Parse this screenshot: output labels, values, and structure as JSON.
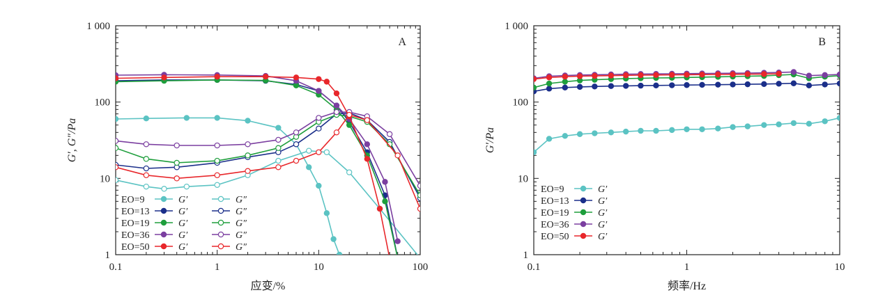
{
  "chart_data": [
    {
      "panel_label": "A",
      "type": "line",
      "xlabel": "应变/%",
      "ylabel": "G′, G″/Pa",
      "x_scale": "log",
      "y_scale": "log",
      "xlim": [
        0.1,
        100
      ],
      "ylim": [
        1,
        1000
      ],
      "x_ticks": [
        "0.1",
        "1",
        "10",
        "100"
      ],
      "y_ticks": [
        "1",
        "10",
        "100",
        "1 000"
      ],
      "legend_position": "bottom-left",
      "legend_columns": [
        {
          "entries": [
            {
              "label": "EO=9",
              "sym": "G′"
            },
            {
              "label": "EO=13",
              "sym": "G′"
            },
            {
              "label": "EO=19",
              "sym": "G′"
            },
            {
              "label": "EO=36",
              "sym": "G′"
            },
            {
              "label": "EO=50",
              "sym": "G′"
            }
          ]
        },
        {
          "entries": [
            {
              "label": "",
              "sym": "G″"
            },
            {
              "label": "",
              "sym": "G″"
            },
            {
              "label": "",
              "sym": "G″"
            },
            {
              "label": "",
              "sym": "G″"
            },
            {
              "label": "",
              "sym": "G″"
            }
          ]
        }
      ],
      "series": [
        {
          "name": "EO=9 G′",
          "color": "#5bc3c3",
          "marker": "filled",
          "x": [
            0.1,
            0.2,
            0.5,
            1,
            2,
            4,
            6,
            8,
            10,
            12,
            14,
            16
          ],
          "y": [
            60,
            61,
            62,
            62,
            57,
            46,
            28,
            14,
            8,
            3.5,
            1.6,
            1.0
          ]
        },
        {
          "name": "EO=9 G″",
          "color": "#5bc3c3",
          "marker": "open",
          "x": [
            0.1,
            0.2,
            0.3,
            0.5,
            1,
            2,
            4,
            8,
            12,
            20,
            40,
            100
          ],
          "y": [
            9.5,
            7.8,
            7.3,
            7.8,
            8.2,
            11,
            17,
            23,
            22,
            12,
            4,
            0.9
          ]
        },
        {
          "name": "EO=13 G′",
          "color": "#1b2f8a",
          "marker": "filled",
          "x": [
            0.1,
            0.3,
            1,
            3,
            6,
            10,
            15,
            20,
            30,
            45,
            60
          ],
          "y": [
            190,
            195,
            195,
            190,
            170,
            140,
            90,
            55,
            22,
            6,
            0.9
          ]
        },
        {
          "name": "EO=13 G″",
          "color": "#1b2f8a",
          "marker": "open",
          "x": [
            0.1,
            0.2,
            0.4,
            1,
            2,
            4,
            6,
            10,
            15,
            20,
            30,
            50,
            100
          ],
          "y": [
            15,
            13.5,
            14,
            16,
            19,
            22,
            28,
            45,
            70,
            72,
            58,
            30,
            5.5
          ]
        },
        {
          "name": "EO=19 G′",
          "color": "#1e9e3c",
          "marker": "filled",
          "x": [
            0.1,
            0.3,
            1,
            3,
            6,
            10,
            15,
            20,
            30,
            45,
            60
          ],
          "y": [
            185,
            190,
            195,
            192,
            165,
            125,
            80,
            50,
            20,
            5,
            0.9
          ]
        },
        {
          "name": "EO=19 G″",
          "color": "#1e9e3c",
          "marker": "open",
          "x": [
            0.1,
            0.2,
            0.4,
            1,
            2,
            4,
            6,
            10,
            15,
            20,
            30,
            50,
            100
          ],
          "y": [
            25,
            18,
            16,
            17,
            20,
            25,
            35,
            55,
            68,
            65,
            55,
            28,
            6
          ]
        },
        {
          "name": "EO=36 G′",
          "color": "#7b3fa0",
          "marker": "filled",
          "x": [
            0.1,
            0.3,
            1,
            3,
            6,
            10,
            15,
            20,
            30,
            45,
            60
          ],
          "y": [
            225,
            228,
            226,
            220,
            190,
            140,
            90,
            60,
            28,
            9,
            1.5
          ]
        },
        {
          "name": "EO=36 G″",
          "color": "#7b3fa0",
          "marker": "open",
          "x": [
            0.1,
            0.2,
            0.4,
            1,
            2,
            4,
            6,
            10,
            15,
            20,
            30,
            50,
            100
          ],
          "y": [
            31,
            28,
            27,
            27,
            28,
            32,
            40,
            62,
            74,
            74,
            65,
            38,
            8
          ]
        },
        {
          "name": "EO=50 G′",
          "color": "#e8272b",
          "marker": "filled",
          "x": [
            0.1,
            0.3,
            1,
            3,
            6,
            10,
            12,
            15,
            20,
            30,
            40,
            50
          ],
          "y": [
            205,
            210,
            215,
            215,
            210,
            200,
            185,
            130,
            65,
            18,
            4,
            0.9
          ]
        },
        {
          "name": "EO=50 G″",
          "color": "#e8272b",
          "marker": "open",
          "x": [
            0.1,
            0.2,
            0.4,
            1,
            2,
            4,
            6,
            10,
            15,
            20,
            30,
            60,
            100
          ],
          "y": [
            14,
            11,
            10,
            11,
            12.5,
            14,
            17,
            22,
            40,
            68,
            58,
            20,
            4
          ]
        }
      ]
    },
    {
      "panel_label": "B",
      "type": "line",
      "xlabel": "频率/Hz",
      "ylabel": "G′/Pa",
      "x_scale": "log",
      "y_scale": "log",
      "xlim": [
        0.1,
        10
      ],
      "ylim": [
        1,
        1000
      ],
      "x_ticks": [
        "0.1",
        "1",
        "10"
      ],
      "y_ticks": [
        "1",
        "10",
        "100",
        "1 000"
      ],
      "legend_position": "bottom-left",
      "legend_columns": [
        {
          "entries": [
            {
              "label": "EO=9",
              "sym": "G′"
            },
            {
              "label": "EO=13",
              "sym": "G′"
            },
            {
              "label": "EO=19",
              "sym": "G′"
            },
            {
              "label": "EO=36",
              "sym": "G′"
            },
            {
              "label": "EO=50",
              "sym": "G′"
            }
          ]
        }
      ],
      "series": [
        {
          "name": "EO=9 G′",
          "color": "#5bc3c3",
          "marker": "filled",
          "x": [
            0.1,
            0.126,
            0.16,
            0.2,
            0.25,
            0.32,
            0.4,
            0.5,
            0.63,
            0.8,
            1,
            1.26,
            1.6,
            2,
            2.5,
            3.2,
            4,
            5,
            6.3,
            8,
            10
          ],
          "y": [
            22,
            33,
            36,
            38,
            39,
            40,
            41,
            42,
            42,
            43,
            44,
            44,
            45,
            47,
            48,
            50,
            51,
            53,
            52,
            56,
            62
          ]
        },
        {
          "name": "EO=13 G′",
          "color": "#1b2f8a",
          "marker": "filled",
          "x": [
            0.1,
            0.126,
            0.16,
            0.2,
            0.25,
            0.32,
            0.4,
            0.5,
            0.63,
            0.8,
            1,
            1.26,
            1.6,
            2,
            2.5,
            3.2,
            4,
            5,
            6.3,
            8,
            10
          ],
          "y": [
            138,
            150,
            155,
            158,
            160,
            162,
            163,
            164,
            165,
            166,
            167,
            168,
            169,
            170,
            171,
            172,
            174,
            176,
            165,
            170,
            175
          ]
        },
        {
          "name": "EO=19 G′",
          "color": "#1e9e3c",
          "marker": "filled",
          "x": [
            0.1,
            0.126,
            0.16,
            0.2,
            0.25,
            0.32,
            0.4,
            0.5,
            0.63,
            0.8,
            1,
            1.26,
            1.6,
            2,
            2.5,
            3.2,
            4,
            5,
            6.3,
            8,
            10
          ],
          "y": [
            155,
            175,
            185,
            192,
            196,
            200,
            203,
            205,
            207,
            208,
            210,
            212,
            214,
            216,
            218,
            220,
            225,
            230,
            205,
            215,
            222
          ]
        },
        {
          "name": "EO=36 G′",
          "color": "#7b3fa0",
          "marker": "filled",
          "x": [
            0.1,
            0.126,
            0.16,
            0.2,
            0.25,
            0.32,
            0.4,
            0.5,
            0.63,
            0.8,
            1,
            1.26,
            1.6,
            2,
            2.5,
            3.2,
            4,
            5,
            6.3,
            8,
            10
          ],
          "y": [
            205,
            218,
            223,
            226,
            228,
            230,
            232,
            233,
            234,
            235,
            236,
            237,
            238,
            239,
            240,
            242,
            244,
            248,
            222,
            226,
            230
          ]
        },
        {
          "name": "EO=50 G′",
          "color": "#e8272b",
          "marker": "filled",
          "x": [
            0.1,
            0.126,
            0.16,
            0.2,
            0.25,
            0.32,
            0.4,
            0.5,
            0.63,
            0.8,
            1,
            1.26,
            1.6,
            2,
            2.5,
            3.2,
            4
          ],
          "y": [
            200,
            210,
            215,
            218,
            220,
            222,
            224,
            225,
            226,
            227,
            228,
            229,
            230,
            231,
            232,
            233,
            235
          ]
        }
      ]
    }
  ]
}
